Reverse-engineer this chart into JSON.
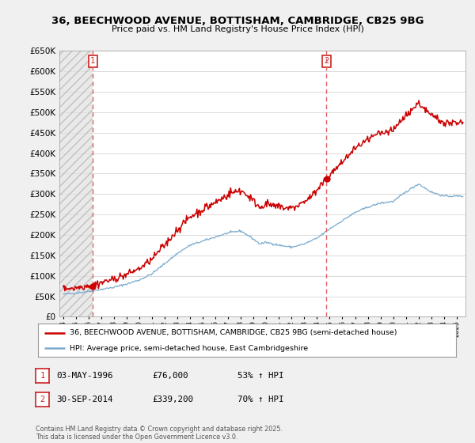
{
  "title": "36, BEECHWOOD AVENUE, BOTTISHAM, CAMBRIDGE, CB25 9BG",
  "subtitle": "Price paid vs. HM Land Registry's House Price Index (HPI)",
  "legend_line1": "36, BEECHWOOD AVENUE, BOTTISHAM, CAMBRIDGE, CB25 9BG (semi-detached house)",
  "legend_line2": "HPI: Average price, semi-detached house, East Cambridgeshire",
  "sale1_date_str": "03-MAY-1996",
  "sale1_price": 76000,
  "sale1_hpi_pct": "53% ↑ HPI",
  "sale1_year": 1996.34,
  "sale2_date_str": "30-SEP-2014",
  "sale2_price": 339200,
  "sale2_hpi_pct": "70% ↑ HPI",
  "sale2_year": 2014.75,
  "red_color": "#cc0000",
  "blue_color": "#7aabcf",
  "dashed_color": "#e06060",
  "background_color": "#f0f0f0",
  "plot_bg_color": "#ffffff",
  "hatch_color": "#cccccc",
  "grid_color": "#cccccc",
  "ylim_max": 650000,
  "xlim_start": 1993.7,
  "xlim_end": 2025.7,
  "footnote": "Contains HM Land Registry data © Crown copyright and database right 2025.\nThis data is licensed under the Open Government Licence v3.0."
}
